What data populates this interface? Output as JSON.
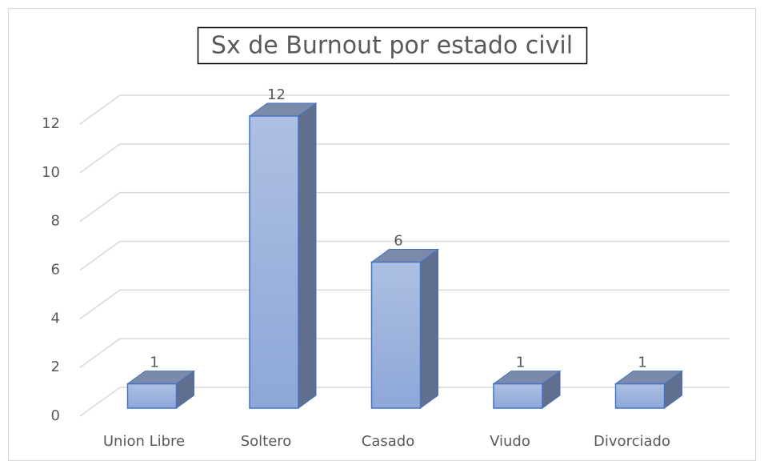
{
  "chart_data": {
    "type": "bar3d",
    "title": "Sx de Burnout por estado civil",
    "categories": [
      "Union Libre",
      "Soltero",
      "Casado",
      "Viudo",
      "Divorciado"
    ],
    "values": [
      1,
      12,
      6,
      1,
      1
    ],
    "color": "#9bb0dd",
    "ylim": [
      0,
      12
    ],
    "yticks": [
      0,
      2,
      4,
      6,
      8,
      10,
      12
    ],
    "grid": true
  }
}
